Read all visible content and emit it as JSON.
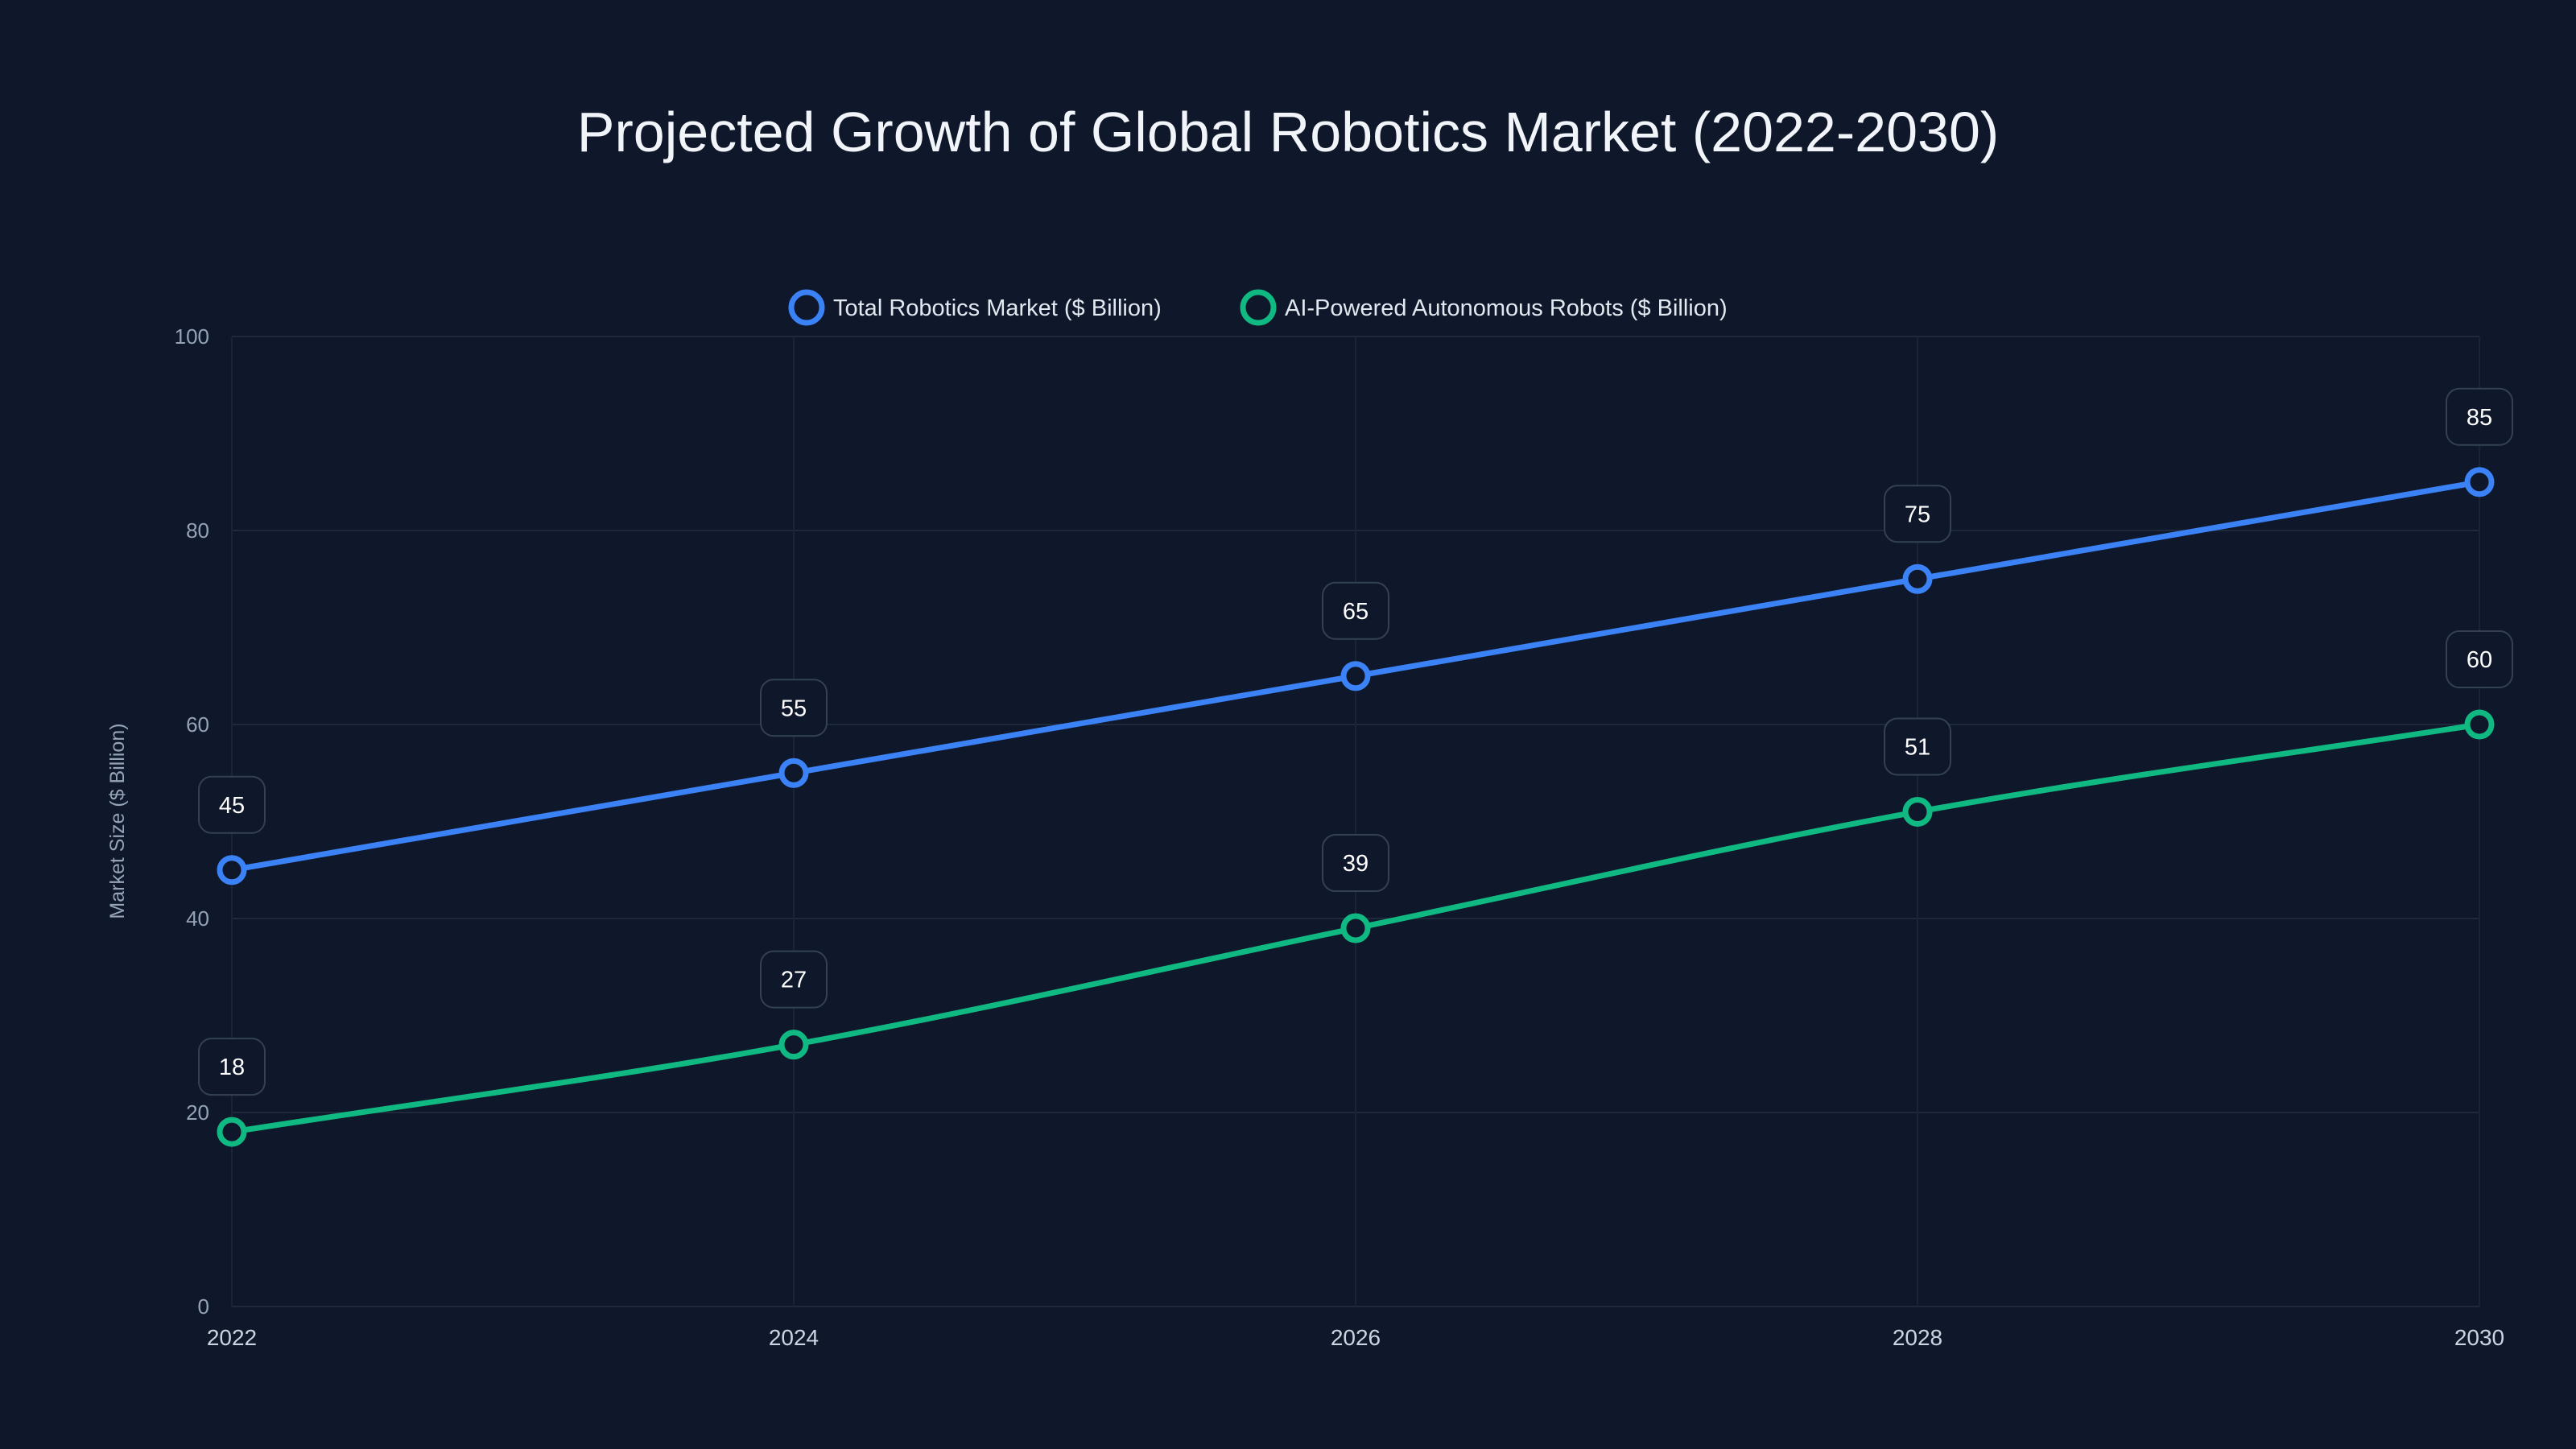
{
  "chart_data": {
    "type": "line",
    "title": "Projected Growth of Global Robotics Market (2022-2030)",
    "xlabel": "",
    "ylabel": "Market Size ($ Billion)",
    "x": [
      "2022",
      "2024",
      "2026",
      "2028",
      "2030"
    ],
    "ylim": [
      0,
      100
    ],
    "yticks": [
      "0",
      "20",
      "40",
      "60",
      "80",
      "100"
    ],
    "grid": true,
    "legend_position": "top-center",
    "series": [
      {
        "name": "Total Robotics Market ($ Billion)",
        "values": [
          45,
          55,
          65,
          75,
          85
        ],
        "color": "#3b82f6",
        "smooth": false
      },
      {
        "name": "AI-Powered Autonomous Robots ($ Billion)",
        "values": [
          18,
          27,
          39,
          51,
          60
        ],
        "color": "#10b981",
        "smooth": true
      }
    ],
    "background": "#0f172a"
  }
}
